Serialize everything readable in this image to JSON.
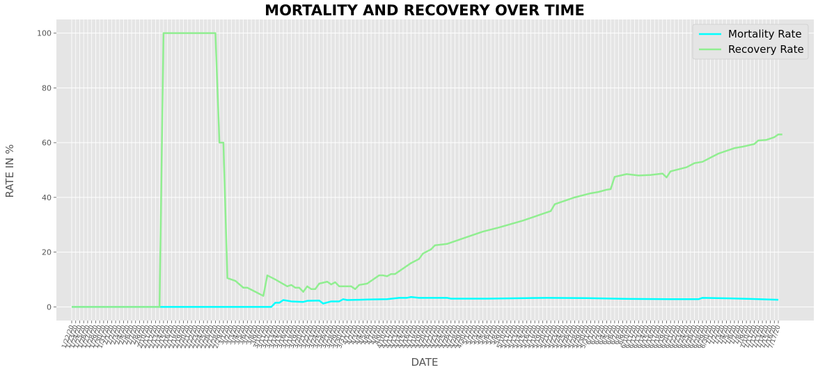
{
  "chart_data": {
    "type": "line",
    "title": "MORTALITY AND RECOVERY OVER TIME",
    "xlabel": "DATE",
    "ylabel": "RATE IN  %",
    "ylim": [
      -5,
      105
    ],
    "yticks": [
      0,
      20,
      40,
      60,
      80,
      100
    ],
    "grid": true,
    "legend_position": "top-right",
    "x_start": "1/22/20",
    "x_end": "7/17/20",
    "series": [
      {
        "name": "Mortality Rate",
        "color": "#00ffff",
        "keypoints": [
          [
            "1/22/20",
            0
          ],
          [
            "3/12/20",
            0
          ],
          [
            "3/13/20",
            1.5
          ],
          [
            "3/14/20",
            1.5
          ],
          [
            "3/15/20",
            2.5
          ],
          [
            "3/17/20",
            2
          ],
          [
            "3/20/20",
            1.8
          ],
          [
            "3/21/20",
            2.2
          ],
          [
            "3/24/20",
            2.3
          ],
          [
            "3/25/20",
            1.2
          ],
          [
            "3/27/20",
            2
          ],
          [
            "3/29/20",
            2
          ],
          [
            "3/30/20",
            2.8
          ],
          [
            "3/31/20",
            2.5
          ],
          [
            "4/3/20",
            2.6
          ],
          [
            "4/5/20",
            2.7
          ],
          [
            "4/10/20",
            2.8
          ],
          [
            "4/13/20",
            3.3
          ],
          [
            "4/15/20",
            3.3
          ],
          [
            "4/16/20",
            3.6
          ],
          [
            "4/18/20",
            3.3
          ],
          [
            "4/25/20",
            3.3
          ],
          [
            "4/26/20",
            3.0
          ],
          [
            "5/5/20",
            3.0
          ],
          [
            "5/15/20",
            3.2
          ],
          [
            "5/20/20",
            3.3
          ],
          [
            "5/30/20",
            3.2
          ],
          [
            "6/10/20",
            2.9
          ],
          [
            "6/20/20",
            2.8
          ],
          [
            "6/27/20",
            2.8
          ],
          [
            "6/28/20",
            3.3
          ],
          [
            "7/5/20",
            3.1
          ],
          [
            "7/10/20",
            2.9
          ],
          [
            "7/17/20",
            2.6
          ]
        ]
      },
      {
        "name": "Recovery Rate",
        "color": "#90ee90",
        "keypoints": [
          [
            "1/22/20",
            0
          ],
          [
            "2/13/20",
            0
          ],
          [
            "2/14/20",
            100
          ],
          [
            "2/27/20",
            100
          ],
          [
            "2/28/20",
            60
          ],
          [
            "2/29/20",
            60
          ],
          [
            "3/1/20",
            10.5
          ],
          [
            "3/3/20",
            9.5
          ],
          [
            "3/5/20",
            7
          ],
          [
            "3/6/20",
            7
          ],
          [
            "3/8/20",
            5.5
          ],
          [
            "3/10/20",
            4
          ],
          [
            "3/11/20",
            11.5
          ],
          [
            "3/13/20",
            10
          ],
          [
            "3/16/20",
            7.5
          ],
          [
            "3/17/20",
            8
          ],
          [
            "3/18/20",
            7
          ],
          [
            "3/19/20",
            7
          ],
          [
            "3/20/20",
            5.5
          ],
          [
            "3/21/20",
            7.5
          ],
          [
            "3/22/20",
            6.5
          ],
          [
            "3/23/20",
            6.5
          ],
          [
            "3/24/20",
            8.5
          ],
          [
            "3/26/20",
            9.2
          ],
          [
            "3/27/20",
            8.2
          ],
          [
            "3/28/20",
            9
          ],
          [
            "3/29/20",
            7.5
          ],
          [
            "4/1/20",
            7.5
          ],
          [
            "4/2/20",
            6.5
          ],
          [
            "4/3/20",
            8
          ],
          [
            "4/5/20",
            8.5
          ],
          [
            "4/8/20",
            11.5
          ],
          [
            "4/9/20",
            11.5
          ],
          [
            "4/10/20",
            11.2
          ],
          [
            "4/11/20",
            12
          ],
          [
            "4/12/20",
            12
          ],
          [
            "4/16/20",
            16
          ],
          [
            "4/18/20",
            17.5
          ],
          [
            "4/19/20",
            19.5
          ],
          [
            "4/21/20",
            21
          ],
          [
            "4/22/20",
            22.5
          ],
          [
            "4/25/20",
            23
          ],
          [
            "5/1/20",
            26
          ],
          [
            "5/4/20",
            27.5
          ],
          [
            "5/8/20",
            29
          ],
          [
            "5/14/20",
            31.5
          ],
          [
            "5/19/20",
            34
          ],
          [
            "5/21/20",
            35
          ],
          [
            "5/22/20",
            37.5
          ],
          [
            "5/27/20",
            40
          ],
          [
            "5/31/20",
            41.5
          ],
          [
            "6/2/20",
            42
          ],
          [
            "6/4/20",
            42.8
          ],
          [
            "6/5/20",
            43
          ],
          [
            "6/6/20",
            47.5
          ],
          [
            "6/9/20",
            48.5
          ],
          [
            "6/12/20",
            48
          ],
          [
            "6/15/20",
            48.2
          ],
          [
            "6/18/20",
            48.7
          ],
          [
            "6/19/20",
            47.3
          ],
          [
            "6/20/20",
            49.5
          ],
          [
            "6/24/20",
            51
          ],
          [
            "6/26/20",
            52.5
          ],
          [
            "6/28/20",
            53
          ],
          [
            "6/30/20",
            54.5
          ],
          [
            "7/2/20",
            56
          ],
          [
            "7/6/20",
            58
          ],
          [
            "7/8/20",
            58.5
          ],
          [
            "7/11/20",
            59.5
          ],
          [
            "7/12/20",
            60.8
          ],
          [
            "7/14/20",
            61
          ],
          [
            "7/16/20",
            62
          ],
          [
            "7/17/20",
            63
          ],
          [
            "7/18/20",
            63
          ]
        ]
      }
    ]
  }
}
